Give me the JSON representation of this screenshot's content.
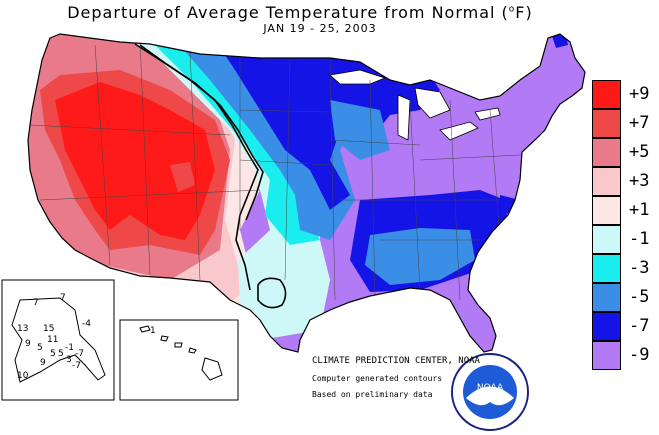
{
  "header": {
    "title": "Departure of Average Temperature from Normal (",
    "title_unit": "o",
    "title_tail": "F)",
    "date_range": "JAN 19 - 25, 2003"
  },
  "legend": [
    {
      "label": "+9",
      "color": "#ff1a1a"
    },
    {
      "label": "+7",
      "color": "#ee4848"
    },
    {
      "label": "+5",
      "color": "#e87a8a"
    },
    {
      "label": "+3",
      "color": "#f9c8cd"
    },
    {
      "label": "+1",
      "color": "#fde6e6"
    },
    {
      "label": "-1",
      "color": "#cef8f8"
    },
    {
      "label": "-3",
      "color": "#19eded"
    },
    {
      "label": "-5",
      "color": "#3a8ee6"
    },
    {
      "label": "-7",
      "color": "#1414e6"
    },
    {
      "label": "-9",
      "color": "#b37af5"
    }
  ],
  "alaska_contour_labels": [
    "13",
    "15",
    "11",
    "9",
    "5",
    "-4",
    "-7",
    "-1",
    "7",
    "10",
    "9",
    "5",
    "5",
    "3",
    "-7",
    "7"
  ],
  "hawaii_contour_labels": [
    "1"
  ],
  "credits": {
    "center": "CLIMATE PREDICTION CENTER, NOAA",
    "line1": "Computer generated contours",
    "line2": "Based on preliminary data"
  },
  "logo": {
    "text": "NOAA",
    "ring_text": "NATIONAL OCEANIC AND ATMOSPHERIC ADMINISTRATION · U.S. DEPARTMENT OF COMMERCE"
  }
}
